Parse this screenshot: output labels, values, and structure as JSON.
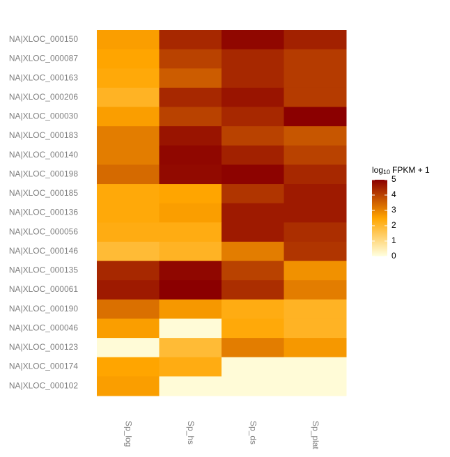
{
  "chart_data": {
    "type": "heatmap",
    "x": [
      "Sp_log",
      "Sp_hs",
      "Sp_ds",
      "Sp_plat"
    ],
    "y": [
      "NA|XLOC_000150",
      "NA|XLOC_000087",
      "NA|XLOC_000163",
      "NA|XLOC_000206",
      "NA|XLOC_000030",
      "NA|XLOC_000183",
      "NA|XLOC_000140",
      "NA|XLOC_000198",
      "NA|XLOC_000185",
      "NA|XLOC_000136",
      "NA|XLOC_000056",
      "NA|XLOC_000146",
      "NA|XLOC_000135",
      "NA|XLOC_000061",
      "NA|XLOC_000190",
      "NA|XLOC_000046",
      "NA|XLOC_000123",
      "NA|XLOC_000174",
      "NA|XLOC_000102"
    ],
    "values": [
      [
        2.6,
        4.4,
        4.9,
        4.5
      ],
      [
        2.5,
        4.0,
        4.4,
        4.1
      ],
      [
        2.4,
        3.6,
        4.4,
        4.1
      ],
      [
        2.1,
        4.4,
        4.7,
        4.1
      ],
      [
        2.6,
        4.0,
        4.4,
        5.0
      ],
      [
        3.1,
        4.7,
        4.0,
        3.7
      ],
      [
        3.1,
        4.9,
        4.5,
        4.0
      ],
      [
        3.4,
        4.85,
        4.95,
        4.4
      ],
      [
        2.4,
        2.5,
        4.2,
        4.6
      ],
      [
        2.4,
        2.6,
        4.6,
        4.6
      ],
      [
        2.3,
        2.3,
        4.6,
        4.3
      ],
      [
        1.9,
        2.1,
        3.1,
        4.2
      ],
      [
        4.4,
        4.9,
        4.0,
        2.8
      ],
      [
        4.6,
        5.0,
        4.3,
        3.1
      ],
      [
        3.3,
        2.7,
        2.3,
        2.1
      ],
      [
        2.6,
        0.1,
        2.4,
        2.1
      ],
      [
        0.1,
        1.9,
        3.1,
        2.7
      ],
      [
        2.5,
        2.3,
        0.1,
        0.1
      ],
      [
        2.6,
        0.1,
        0.1,
        0.1
      ]
    ],
    "legend_title": {
      "base": "log",
      "subscript": "10",
      "rest": "FPKM + 1"
    },
    "zlim": [
      0,
      5
    ],
    "zticks": [
      0,
      1,
      2,
      3,
      4,
      5
    ],
    "colorscale": [
      "#FFFFE0",
      "#FFA500",
      "#8B0000"
    ]
  }
}
